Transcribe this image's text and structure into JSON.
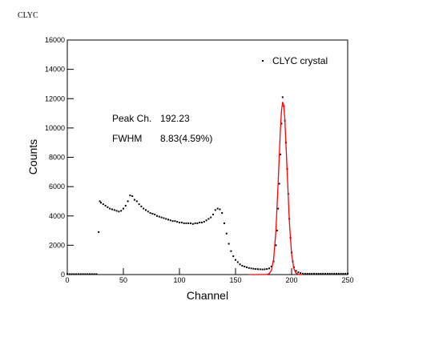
{
  "chart_data": {
    "type": "scatter",
    "title": "CLYC",
    "xlabel": "Channel",
    "ylabel": "Counts",
    "annotations": [
      "Peak Ch.",
      "192.23",
      "FWHM",
      "8.83(4.59%)"
    ],
    "legend_loc": "upper right",
    "xlim": [
      0,
      250
    ],
    "xticks": [
      0,
      50,
      100,
      150,
      200,
      250
    ],
    "ylim": [
      0,
      16000
    ],
    "yticks": [
      0,
      2000,
      4000,
      6000,
      8000,
      10000,
      12000,
      14000,
      16000
    ],
    "series": [
      {
        "name": "CLYC crystal",
        "color": "#000000",
        "kind": "points",
        "x": [
          0,
          2,
          4,
          6,
          8,
          10,
          12,
          14,
          16,
          18,
          20,
          22,
          24,
          26,
          28,
          29,
          30,
          32,
          34,
          36,
          38,
          40,
          42,
          44,
          46,
          48,
          50,
          52,
          54,
          56,
          58,
          60,
          62,
          64,
          66,
          68,
          70,
          72,
          74,
          76,
          78,
          80,
          82,
          84,
          86,
          88,
          90,
          92,
          94,
          96,
          98,
          100,
          102,
          104,
          106,
          108,
          110,
          112,
          114,
          116,
          118,
          120,
          122,
          124,
          126,
          128,
          130,
          132,
          134,
          136,
          138,
          140,
          142,
          144,
          146,
          148,
          150,
          152,
          154,
          156,
          158,
          160,
          162,
          164,
          166,
          168,
          170,
          172,
          174,
          176,
          178,
          180,
          182,
          184,
          186,
          187,
          188,
          189,
          190,
          191,
          192,
          193,
          194,
          195,
          196,
          197,
          198,
          199,
          200,
          201,
          202,
          204,
          206,
          208,
          210,
          212,
          214,
          216,
          218,
          220,
          222,
          224,
          226,
          228,
          230,
          232,
          234,
          236,
          238,
          240,
          242,
          244,
          246,
          248,
          250
        ],
        "values": [
          30,
          30,
          30,
          30,
          30,
          30,
          30,
          30,
          30,
          30,
          30,
          30,
          30,
          30,
          2900,
          5000,
          4900,
          4800,
          4700,
          4600,
          4500,
          4450,
          4400,
          4350,
          4300,
          4350,
          4500,
          4700,
          5000,
          5400,
          5350,
          5100,
          5000,
          4800,
          4650,
          4500,
          4400,
          4300,
          4200,
          4150,
          4100,
          4000,
          3950,
          3900,
          3850,
          3800,
          3750,
          3700,
          3650,
          3650,
          3600,
          3550,
          3550,
          3500,
          3500,
          3500,
          3500,
          3450,
          3500,
          3500,
          3550,
          3550,
          3600,
          3700,
          3800,
          3900,
          4100,
          4400,
          4500,
          4450,
          4200,
          3500,
          2800,
          2100,
          1600,
          1250,
          1000,
          850,
          700,
          600,
          550,
          500,
          450,
          420,
          400,
          380,
          370,
          360,
          350,
          360,
          380,
          420,
          550,
          900,
          2000,
          3000,
          4500,
          6200,
          8200,
          10300,
          12100,
          11500,
          10500,
          9000,
          7200,
          5500,
          3800,
          2500,
          1500,
          900,
          500,
          250,
          150,
          100,
          60,
          60,
          60,
          60,
          60,
          60,
          60,
          60,
          60,
          60,
          60,
          60,
          60,
          60,
          60,
          60,
          60,
          60,
          60,
          60,
          60
        ]
      },
      {
        "color": "#ff0000",
        "kind": "line",
        "x": [
          162,
          166,
          170,
          174,
          178,
          180,
          182,
          184,
          186,
          188,
          190,
          191,
          192,
          193,
          194,
          196,
          198,
          200,
          202,
          204,
          206,
          210
        ],
        "values": [
          0,
          0,
          0,
          0,
          10,
          58,
          286,
          1061,
          2969,
          6245,
          9889,
          11180,
          11778,
          11555,
          10559,
          7118,
          3611,
          1380,
          396,
          86,
          14,
          0
        ]
      }
    ]
  }
}
